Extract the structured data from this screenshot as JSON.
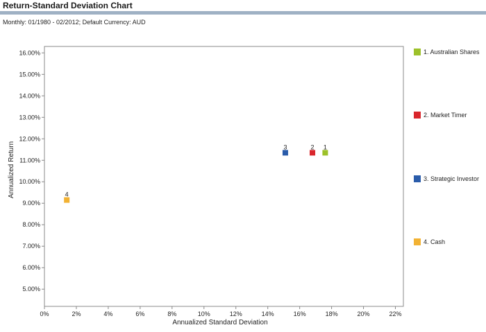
{
  "header": {
    "title": "Return-Standard Deviation Chart",
    "subtitle": "Monthly: 01/1980 - 02/2012; Default Currency: AUD"
  },
  "chart_data": {
    "type": "scatter",
    "title": "Return-Standard Deviation Chart",
    "xlabel": "Annualized Standard Deviation",
    "ylabel": "Annualized Return",
    "xlim": [
      0,
      22.5
    ],
    "ylim": [
      4.2,
      16.3
    ],
    "x_ticks": [
      0,
      2,
      4,
      6,
      8,
      10,
      12,
      14,
      16,
      18,
      20,
      22
    ],
    "x_tick_labels": [
      "0%",
      "2%",
      "4%",
      "6%",
      "8%",
      "10%",
      "12%",
      "14%",
      "16%",
      "18%",
      "20%",
      "22%"
    ],
    "y_ticks": [
      5,
      6,
      7,
      8,
      9,
      10,
      11,
      12,
      13,
      14,
      15,
      16
    ],
    "y_tick_labels": [
      "5.00%",
      "6.00%",
      "7.00%",
      "8.00%",
      "9.00%",
      "10.00%",
      "11.00%",
      "12.00%",
      "13.00%",
      "14.00%",
      "15.00%",
      "16.00%"
    ],
    "grid": false,
    "legend_position": "right",
    "series": [
      {
        "label": "1",
        "name": "1. Australian Shares",
        "x": 17.6,
        "y": 11.35,
        "color": "#9dc12a"
      },
      {
        "label": "2",
        "name": "2. Market Timer",
        "x": 16.8,
        "y": 11.35,
        "color": "#d9262c"
      },
      {
        "label": "3",
        "name": "3. Strategic Investor",
        "x": 15.1,
        "y": 11.35,
        "color": "#2a5caa"
      },
      {
        "label": "4",
        "name": "4. Cash",
        "x": 1.4,
        "y": 9.15,
        "color": "#f2b233"
      }
    ]
  }
}
